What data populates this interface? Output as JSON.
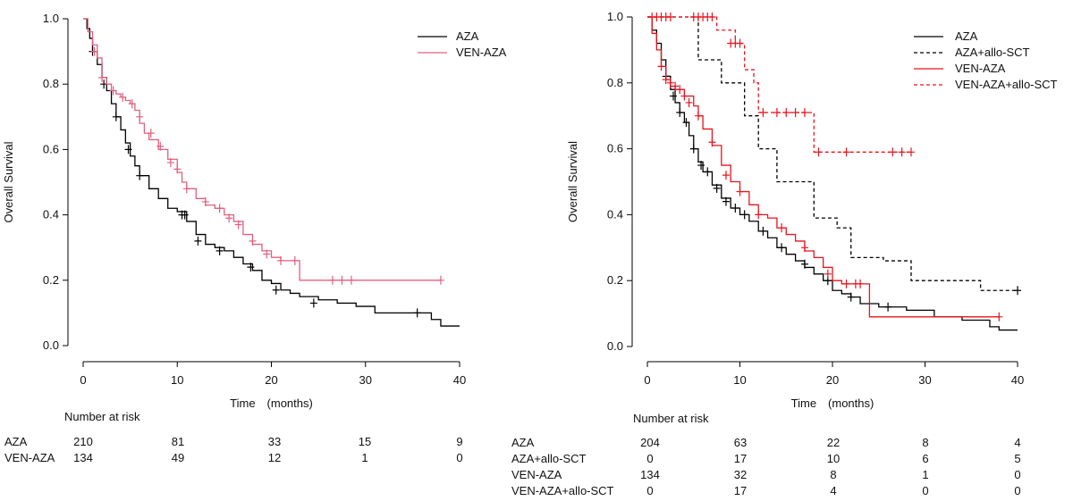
{
  "chart_data": [
    {
      "type": "line",
      "subtype": "kaplan-meier",
      "title": "",
      "xlabel": "Time　(months)",
      "ylabel": "Overall Survival",
      "xlim": [
        0,
        40
      ],
      "ylim": [
        0,
        1
      ],
      "xticks": [
        0,
        10,
        20,
        30,
        40
      ],
      "yticks": [
        "0.0",
        "0.2",
        "0.4",
        "0.6",
        "0.8",
        "1.0"
      ],
      "legend_position": "top-right",
      "grid": false,
      "series": [
        {
          "name": "AZA",
          "color": "#000000",
          "dash": "solid",
          "x": [
            0,
            0.4,
            0.7,
            1.0,
            1.5,
            2.0,
            2.5,
            3.0,
            3.5,
            4.0,
            4.5,
            5.0,
            5.5,
            6.0,
            7.0,
            8.0,
            9.0,
            10.0,
            11.0,
            12.0,
            13.0,
            14.0,
            15.0,
            16.0,
            17.0,
            18.0,
            19.0,
            20.0,
            21.0,
            22.0,
            23.0,
            25.0,
            27.0,
            29.0,
            31.0,
            33.0,
            35.0,
            37.0,
            38.0,
            40.0
          ],
          "y": [
            1.0,
            0.97,
            0.94,
            0.9,
            0.86,
            0.82,
            0.78,
            0.74,
            0.7,
            0.66,
            0.62,
            0.58,
            0.55,
            0.52,
            0.48,
            0.45,
            0.42,
            0.41,
            0.38,
            0.34,
            0.31,
            0.3,
            0.29,
            0.27,
            0.25,
            0.23,
            0.2,
            0.19,
            0.17,
            0.16,
            0.15,
            0.14,
            0.13,
            0.12,
            0.1,
            0.1,
            0.1,
            0.08,
            0.06,
            0.06
          ],
          "censor_x": [
            1.0,
            2.2,
            3.5,
            4.8,
            6.0,
            10.5,
            10.8,
            12.2,
            14.5,
            17.8,
            20.5,
            24.5,
            35.5
          ],
          "censor_y": [
            0.9,
            0.8,
            0.7,
            0.6,
            0.52,
            0.4,
            0.4,
            0.32,
            0.29,
            0.24,
            0.17,
            0.13,
            0.1
          ]
        },
        {
          "name": "VEN-AZA",
          "color": "#e06080",
          "dash": "solid",
          "x": [
            0,
            0.5,
            1.0,
            1.5,
            2.0,
            2.5,
            3.0,
            3.5,
            4.0,
            4.5,
            5.0,
            5.5,
            6.0,
            6.5,
            7.0,
            8.0,
            9.0,
            10.0,
            10.5,
            11.0,
            12.0,
            13.0,
            14.0,
            15.0,
            16.0,
            17.0,
            18.0,
            19.0,
            20.0,
            21.0,
            22.0,
            23.0,
            24.0,
            26.0,
            30.0,
            34.0,
            38.0
          ],
          "y": [
            1.0,
            0.96,
            0.92,
            0.88,
            0.82,
            0.8,
            0.78,
            0.77,
            0.76,
            0.75,
            0.74,
            0.72,
            0.68,
            0.65,
            0.63,
            0.6,
            0.57,
            0.53,
            0.5,
            0.48,
            0.45,
            0.43,
            0.42,
            0.4,
            0.38,
            0.34,
            0.31,
            0.29,
            0.27,
            0.26,
            0.26,
            0.2,
            0.2,
            0.2,
            0.2,
            0.2,
            0.2
          ],
          "censor_x": [
            1.2,
            2.0,
            3.2,
            4.2,
            5.2,
            6.0,
            7.2,
            8.2,
            9.3,
            10.0,
            11.0,
            13.0,
            14.5,
            15.5,
            16.5,
            18.0,
            19.5,
            21.0,
            22.5,
            26.5,
            27.5,
            28.5,
            38.0
          ],
          "censor_y": [
            0.9,
            0.82,
            0.78,
            0.76,
            0.74,
            0.7,
            0.65,
            0.61,
            0.56,
            0.54,
            0.48,
            0.44,
            0.42,
            0.39,
            0.37,
            0.32,
            0.28,
            0.26,
            0.26,
            0.2,
            0.2,
            0.2,
            0.2
          ]
        }
      ],
      "risk_table": {
        "title": "Number at risk",
        "times": [
          0,
          10,
          20,
          30,
          40
        ],
        "rows": [
          {
            "label": "AZA",
            "values": [
              "210",
              "81",
              "33",
              "15",
              "9"
            ]
          },
          {
            "label": "VEN-AZA",
            "values": [
              "134",
              "49",
              "12",
              "1",
              "0"
            ]
          }
        ]
      }
    },
    {
      "type": "line",
      "subtype": "kaplan-meier",
      "title": "",
      "xlabel": "Time　(months)",
      "ylabel": "Overall Survival",
      "xlim": [
        0,
        40
      ],
      "ylim": [
        0,
        1
      ],
      "xticks": [
        0,
        10,
        20,
        30,
        40
      ],
      "yticks": [
        "0.0",
        "0.2",
        "0.4",
        "0.6",
        "0.8",
        "1.0"
      ],
      "legend_position": "top-right",
      "grid": false,
      "series": [
        {
          "name": "AZA",
          "color": "#000000",
          "dash": "solid",
          "x": [
            0,
            0.5,
            1.0,
            1.5,
            2.0,
            2.5,
            3.0,
            3.5,
            4.0,
            4.5,
            5.0,
            5.5,
            6.0,
            7.0,
            8.0,
            9.0,
            10.0,
            11.0,
            12.0,
            13.0,
            14.0,
            15.0,
            16.0,
            17.0,
            18.0,
            19.0,
            20.0,
            21.0,
            22.0,
            23.0,
            25.0,
            28.0,
            31.0,
            34.0,
            36.0,
            37.0,
            38.0,
            40.0
          ],
          "y": [
            1.0,
            0.96,
            0.92,
            0.87,
            0.82,
            0.78,
            0.74,
            0.71,
            0.68,
            0.64,
            0.6,
            0.56,
            0.53,
            0.49,
            0.45,
            0.42,
            0.4,
            0.38,
            0.35,
            0.33,
            0.3,
            0.28,
            0.26,
            0.24,
            0.22,
            0.2,
            0.17,
            0.16,
            0.15,
            0.13,
            0.12,
            0.11,
            0.09,
            0.08,
            0.08,
            0.06,
            0.05,
            0.05
          ],
          "censor_x": [
            2.0,
            2.8,
            3.5,
            4.2,
            5.0,
            5.8,
            6.5,
            7.5,
            8.5,
            9.5,
            10.5,
            12.5,
            14.5,
            17.0,
            19.5,
            22.0,
            26.0
          ],
          "censor_y": [
            0.82,
            0.76,
            0.71,
            0.68,
            0.6,
            0.55,
            0.53,
            0.48,
            0.44,
            0.42,
            0.4,
            0.35,
            0.3,
            0.25,
            0.2,
            0.15,
            0.12
          ]
        },
        {
          "name": "AZA+allo-SCT",
          "color": "#000000",
          "dash": "dashed",
          "x": [
            0,
            4.0,
            5.5,
            8.0,
            10.5,
            11.0,
            12.0,
            14.0,
            17.5,
            18.0,
            20.5,
            22.0,
            25.5,
            28.5,
            36.0,
            40.0
          ],
          "y": [
            1.0,
            1.0,
            0.87,
            0.8,
            0.7,
            0.7,
            0.6,
            0.5,
            0.5,
            0.39,
            0.36,
            0.27,
            0.26,
            0.2,
            0.17,
            0.17
          ],
          "censor_x": [
            40.0
          ],
          "censor_y": [
            0.17
          ]
        },
        {
          "name": "VEN-AZA",
          "color": "#e8141e",
          "dash": "solid",
          "x": [
            0,
            0.5,
            1.0,
            1.5,
            2.0,
            2.5,
            3.0,
            4.0,
            5.0,
            5.5,
            6.0,
            7.0,
            8.0,
            9.0,
            10.0,
            11.0,
            12.0,
            13.0,
            14.0,
            15.0,
            16.0,
            17.0,
            18.0,
            19.0,
            20.0,
            21.0,
            23.0,
            24.0,
            30.0,
            38.0
          ],
          "y": [
            1.0,
            0.95,
            0.9,
            0.85,
            0.81,
            0.79,
            0.78,
            0.76,
            0.73,
            0.7,
            0.66,
            0.61,
            0.55,
            0.5,
            0.47,
            0.43,
            0.4,
            0.39,
            0.36,
            0.34,
            0.32,
            0.29,
            0.27,
            0.24,
            0.2,
            0.19,
            0.19,
            0.09,
            0.09,
            0.09
          ],
          "censor_x": [
            1.5,
            2.0,
            2.5,
            3.0,
            3.5,
            4.0,
            4.5,
            5.5,
            7.0,
            8.5,
            10.0,
            12.0,
            14.5,
            17.0,
            19.5,
            21.5,
            22.5,
            23.0,
            38.0
          ],
          "censor_y": [
            0.85,
            0.81,
            0.8,
            0.79,
            0.78,
            0.76,
            0.74,
            0.7,
            0.62,
            0.52,
            0.47,
            0.4,
            0.36,
            0.3,
            0.22,
            0.19,
            0.19,
            0.19,
            0.09
          ]
        },
        {
          "name": "VEN-AZA+allo-SCT",
          "color": "#e8141e",
          "dash": "dashed",
          "x": [
            0,
            7.0,
            7.5,
            9.5,
            10.5,
            11.5,
            12.0,
            17.5,
            18.0,
            28.5
          ],
          "y": [
            1.0,
            1.0,
            0.96,
            0.92,
            0.84,
            0.8,
            0.71,
            0.71,
            0.59,
            0.59
          ],
          "censor_x": [
            0.5,
            1.0,
            1.5,
            2.0,
            2.5,
            5.0,
            5.5,
            6.0,
            6.5,
            7.0,
            9.0,
            9.5,
            10.0,
            12.5,
            14.0,
            15.0,
            16.0,
            17.0,
            18.5,
            21.5,
            26.5,
            27.5,
            28.5
          ],
          "censor_y": [
            1.0,
            1.0,
            1.0,
            1.0,
            1.0,
            1.0,
            1.0,
            1.0,
            1.0,
            1.0,
            0.92,
            0.92,
            0.92,
            0.71,
            0.71,
            0.71,
            0.71,
            0.71,
            0.59,
            0.59,
            0.59,
            0.59,
            0.59
          ]
        }
      ],
      "risk_table": {
        "title": "Number at risk",
        "times": [
          0,
          10,
          20,
          30,
          40
        ],
        "rows": [
          {
            "label": "AZA",
            "values": [
              "204",
              "63",
              "22",
              "8",
              "4"
            ]
          },
          {
            "label": "AZA+allo-SCT",
            "values": [
              "0",
              "17",
              "10",
              "6",
              "5"
            ]
          },
          {
            "label": "VEN-AZA",
            "values": [
              "134",
              "32",
              "8",
              "1",
              "0"
            ]
          },
          {
            "label": "VEN-AZA+allo-SCT",
            "values": [
              "0",
              "17",
              "4",
              "0",
              "0"
            ]
          }
        ]
      }
    }
  ]
}
